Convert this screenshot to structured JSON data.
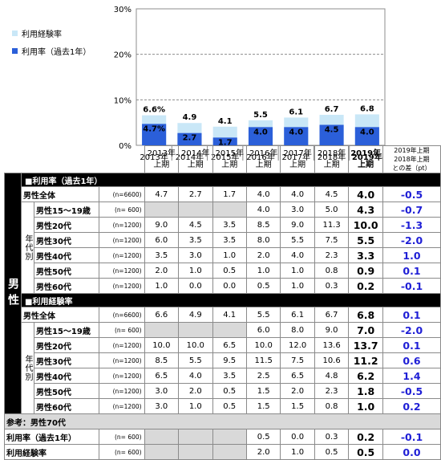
{
  "legend": {
    "experience": "利用経験率",
    "rate": "利用率（過去1年）",
    "experience_color": "#c9e7f7",
    "rate_color": "#2b5fd9"
  },
  "chart_data": {
    "type": "bar",
    "categories": [
      "2013年上期",
      "2014年上期",
      "2015年上期",
      "2016年上期",
      "2017年上期",
      "2018年上期",
      "2019年上期"
    ],
    "category_lines": [
      [
        "2013年",
        "上期"
      ],
      [
        "2014年",
        "上期"
      ],
      [
        "2015年",
        "上期"
      ],
      [
        "2016年",
        "上期"
      ],
      [
        "2017年",
        "上期"
      ],
      [
        "2018年",
        "上期"
      ],
      [
        "2019年",
        "上期"
      ]
    ],
    "series": [
      {
        "name": "利用経験率",
        "values": [
          6.6,
          4.9,
          4.1,
          5.5,
          6.1,
          6.7,
          6.8
        ],
        "labels": [
          "6.6%",
          "4.9",
          "4.1",
          "5.5",
          "6.1",
          "6.7",
          "6.8"
        ]
      },
      {
        "name": "利用率（過去1年）",
        "values": [
          4.7,
          2.7,
          1.7,
          4.0,
          4.0,
          4.5,
          4.0
        ],
        "labels": [
          "4.7%",
          "2.7",
          "1.7",
          "4.0",
          "4.0",
          "4.5",
          "4.0"
        ]
      }
    ],
    "yticks": [
      "0%",
      "10%",
      "20%",
      "30%"
    ],
    "ylim": [
      0,
      30
    ],
    "overlay": true,
    "gridlines": "dashed"
  },
  "table": {
    "diff_header": [
      "2019年上期",
      "2018年上期",
      "との差（pt）"
    ],
    "gender": "男性",
    "age_label": "年代別",
    "sections": [
      {
        "title": "■利用率（過去1年）",
        "rows": [
          {
            "label": "男性全体",
            "n": "(n=6600)",
            "values": [
              "4.7",
              "2.7",
              "1.7",
              "4.0",
              "4.0",
              "4.5",
              "4.0"
            ],
            "diff": "-0.5",
            "sub": false
          },
          {
            "label": "男性15～19歳",
            "n": "(n=  600)",
            "values": [
              "",
              "",
              "",
              "4.0",
              "3.0",
              "5.0",
              "4.3"
            ],
            "diff": "-0.7",
            "sub": true
          },
          {
            "label": "男性20代",
            "n": "(n=1200)",
            "values": [
              "9.0",
              "4.5",
              "3.5",
              "8.5",
              "9.0",
              "11.3",
              "10.0"
            ],
            "diff": "-1.3",
            "sub": true
          },
          {
            "label": "男性30代",
            "n": "(n=1200)",
            "values": [
              "6.0",
              "3.5",
              "3.5",
              "8.0",
              "5.5",
              "7.5",
              "5.5"
            ],
            "diff": "-2.0",
            "sub": true
          },
          {
            "label": "男性40代",
            "n": "(n=1200)",
            "values": [
              "3.5",
              "3.0",
              "1.0",
              "2.0",
              "4.0",
              "2.3",
              "3.3"
            ],
            "diff": "1.0",
            "sub": true
          },
          {
            "label": "男性50代",
            "n": "(n=1200)",
            "values": [
              "2.0",
              "1.0",
              "0.5",
              "1.0",
              "1.0",
              "0.8",
              "0.9"
            ],
            "diff": "0.1",
            "sub": true
          },
          {
            "label": "男性60代",
            "n": "(n=1200)",
            "values": [
              "1.0",
              "0.0",
              "0.0",
              "0.5",
              "1.0",
              "0.3",
              "0.2"
            ],
            "diff": "-0.1",
            "sub": true
          }
        ]
      },
      {
        "title": "■利用経験率",
        "rows": [
          {
            "label": "男性全体",
            "n": "(n=6600)",
            "values": [
              "6.6",
              "4.9",
              "4.1",
              "5.5",
              "6.1",
              "6.7",
              "6.8"
            ],
            "diff": "0.1",
            "sub": false
          },
          {
            "label": "男性15～19歳",
            "n": "(n=  600)",
            "values": [
              "",
              "",
              "",
              "6.0",
              "8.0",
              "9.0",
              "7.0"
            ],
            "diff": "-2.0",
            "sub": true
          },
          {
            "label": "男性20代",
            "n": "(n=1200)",
            "values": [
              "10.0",
              "10.0",
              "6.5",
              "10.0",
              "12.0",
              "13.6",
              "13.7"
            ],
            "diff": "0.1",
            "sub": true
          },
          {
            "label": "男性30代",
            "n": "(n=1200)",
            "values": [
              "8.5",
              "5.5",
              "9.5",
              "11.5",
              "7.5",
              "10.6",
              "11.2"
            ],
            "diff": "0.6",
            "sub": true
          },
          {
            "label": "男性40代",
            "n": "(n=1200)",
            "values": [
              "6.5",
              "4.0",
              "3.5",
              "2.5",
              "6.5",
              "4.8",
              "6.2"
            ],
            "diff": "1.4",
            "sub": true
          },
          {
            "label": "男性50代",
            "n": "(n=1200)",
            "values": [
              "3.0",
              "2.0",
              "0.5",
              "1.5",
              "2.0",
              "2.3",
              "1.8"
            ],
            "diff": "-0.5",
            "sub": true
          },
          {
            "label": "男性60代",
            "n": "(n=1200)",
            "values": [
              "3.0",
              "1.0",
              "0.5",
              "1.5",
              "1.5",
              "0.8",
              "1.0"
            ],
            "diff": "0.2",
            "sub": true
          }
        ]
      }
    ],
    "reference": {
      "title": "参考：男性70代",
      "rows": [
        {
          "label": "利用率（過去1年）",
          "n": "(n=  600)",
          "values": [
            "",
            "",
            "",
            "0.5",
            "0.0",
            "0.3",
            "0.2"
          ],
          "diff": "-0.1"
        },
        {
          "label": "利用経験率",
          "n": "(n=  600)",
          "values": [
            "",
            "",
            "",
            "2.0",
            "1.0",
            "0.5",
            "0.5"
          ],
          "diff": "0.0"
        }
      ]
    }
  }
}
